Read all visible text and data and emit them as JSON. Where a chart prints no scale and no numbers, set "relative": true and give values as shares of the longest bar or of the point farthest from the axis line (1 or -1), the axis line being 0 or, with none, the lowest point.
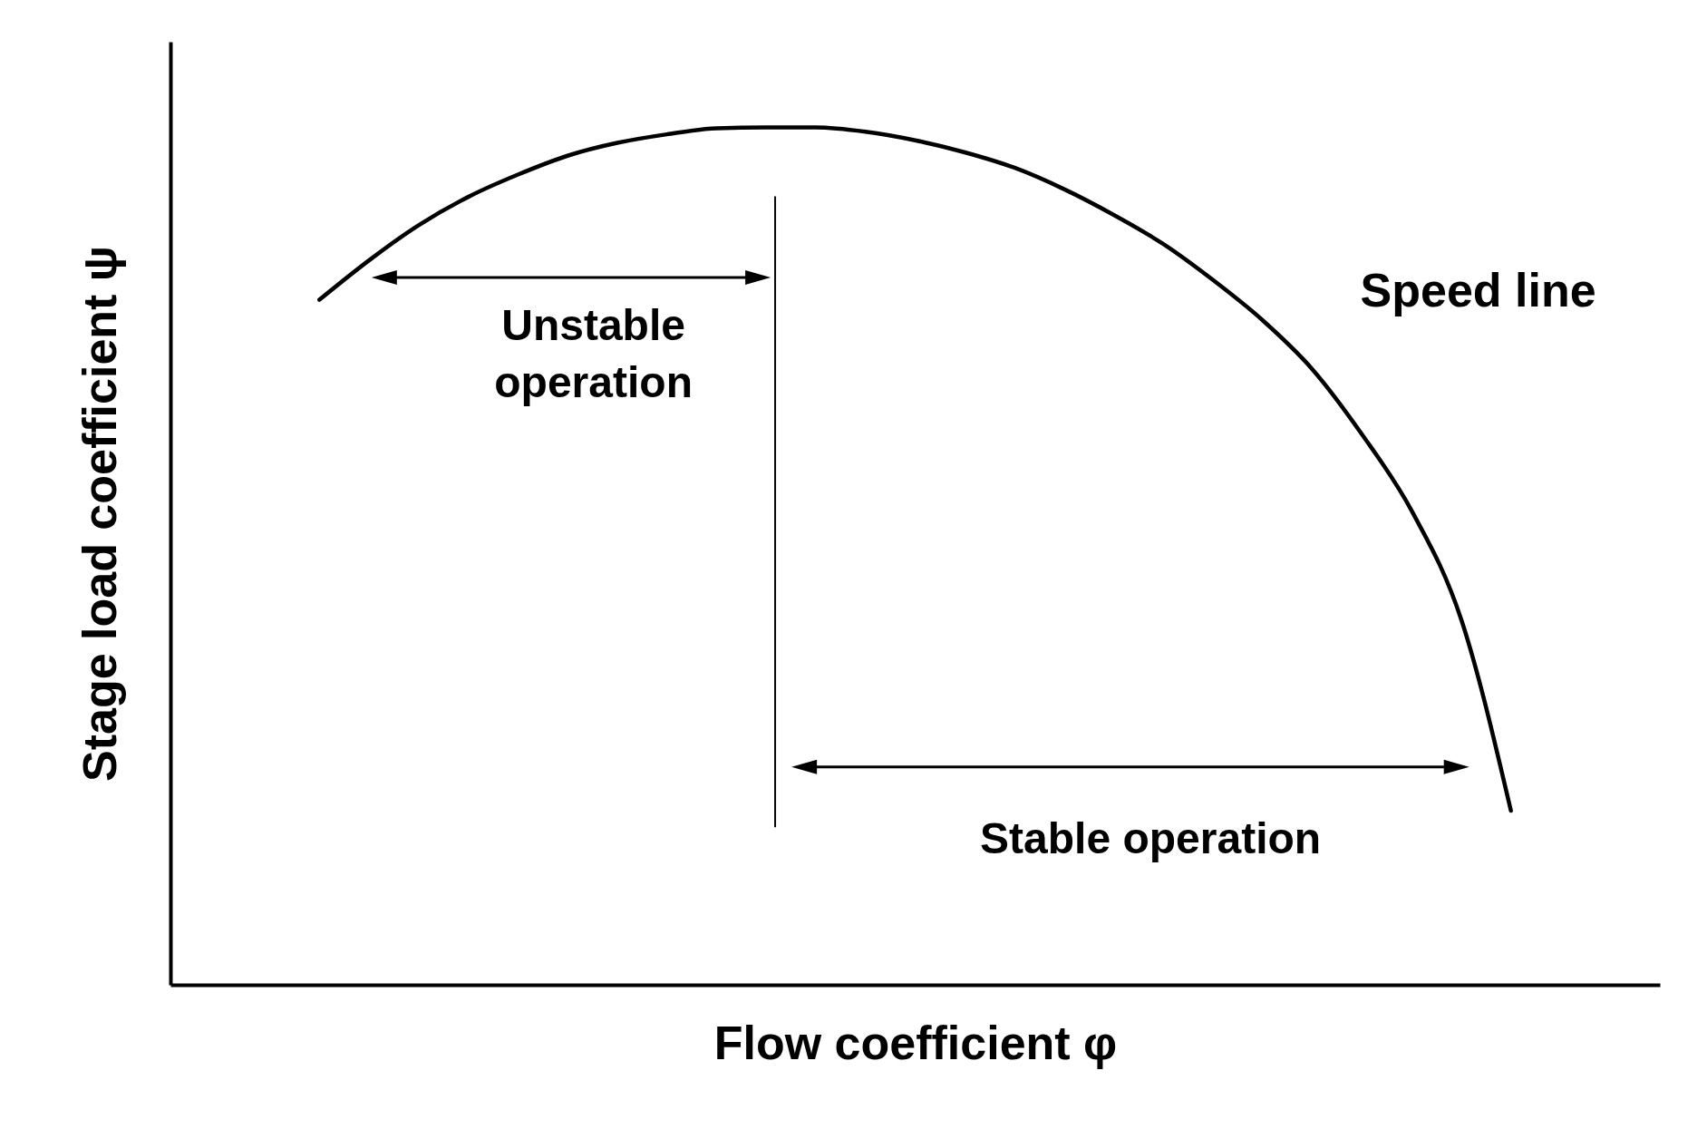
{
  "chart_data": {
    "type": "line",
    "relative": true,
    "tick_labels": false,
    "legend": false,
    "grid": false,
    "line_style": "solid",
    "xlabel": "Flow coefficient φ",
    "ylabel": "Stage load coefficient ψ",
    "annotations": [
      "Unstable operation",
      "Stable operation"
    ],
    "categories": [
      null,
      null,
      null,
      null,
      null,
      null,
      null,
      null,
      null,
      null,
      null,
      null,
      null,
      null,
      null,
      null,
      null,
      null,
      null,
      null,
      null,
      null,
      null,
      null,
      null,
      null,
      null,
      null,
      null,
      null,
      null
    ],
    "series": [
      {
        "name": "Speed line",
        "color": "#000000",
        "values": [
          null,
          null,
          null,
          0.799,
          0.845,
          0.886,
          0.919,
          0.945,
          0.967,
          0.982,
          0.992,
          0.999,
          1.0,
          1.0,
          0.995,
          0.985,
          0.971,
          0.953,
          0.928,
          0.898,
          0.864,
          0.822,
          0.775,
          0.718,
          0.642,
          0.553,
          0.426,
          0.203,
          null,
          null,
          null
        ]
      }
    ]
  }
}
